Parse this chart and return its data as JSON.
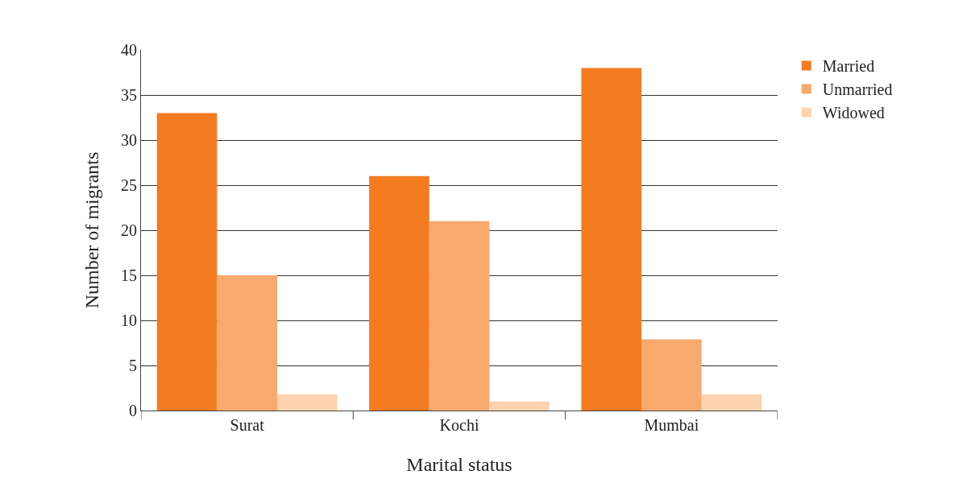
{
  "chart_data": {
    "type": "bar",
    "xlabel": "Marital status",
    "ylabel": "Number of migrants",
    "categories": [
      "Surat",
      "Kochi",
      "Mumbai"
    ],
    "series": [
      {
        "name": "Married",
        "color": "#f47b20",
        "values": [
          33,
          26,
          38
        ]
      },
      {
        "name": "Unmarried",
        "color": "#f8a96d",
        "values": [
          15,
          21,
          7.9
        ]
      },
      {
        "name": "Widowed",
        "color": "#fdd3b0",
        "values": [
          1.8,
          1,
          1.8
        ]
      }
    ],
    "ylim": [
      0,
      40
    ],
    "yticks": [
      0,
      5,
      10,
      15,
      20,
      25,
      30,
      35,
      40
    ],
    "grid": "y",
    "legend": "top right"
  }
}
